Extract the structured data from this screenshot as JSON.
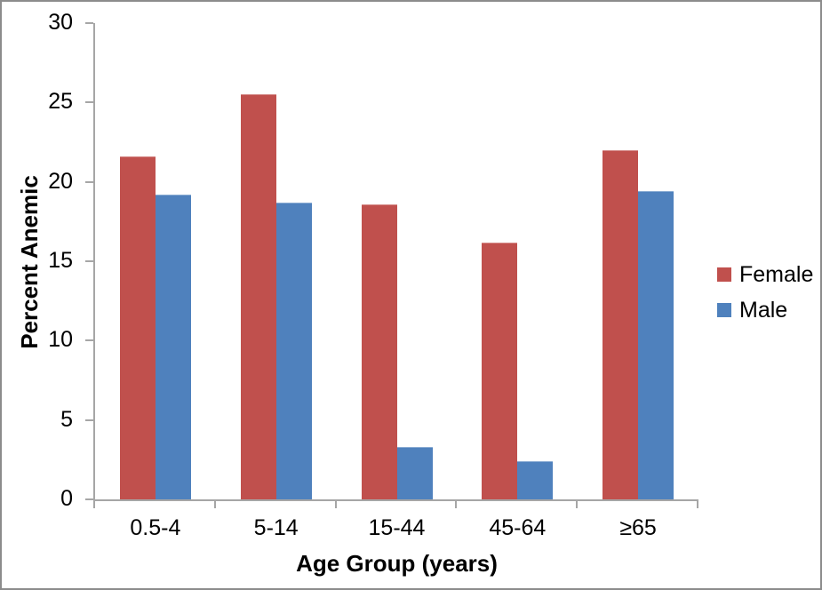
{
  "chart_data": {
    "type": "bar",
    "title": "",
    "categories": [
      "0.5-4",
      "5-14",
      "15-44",
      "45-64",
      "≥65"
    ],
    "series": [
      {
        "name": "Female",
        "color": "#C0504D",
        "values": [
          21.6,
          25.5,
          18.6,
          16.2,
          22.0
        ]
      },
      {
        "name": "Male",
        "color": "#4F81BD",
        "values": [
          19.2,
          18.7,
          3.3,
          2.4,
          19.4
        ]
      }
    ],
    "xlabel": "Age Group (years)",
    "ylabel": "Percent Anemic",
    "ylim": [
      0,
      30
    ],
    "ytick_interval": 5,
    "ytick_labels": [
      "0",
      "5",
      "10",
      "15",
      "20",
      "25",
      "30"
    ],
    "grid": false,
    "legend_position": "middle-right",
    "axis_color": "#A6A6A6",
    "frame_border_color": "#8C8C8C",
    "text_color": "#000000"
  }
}
